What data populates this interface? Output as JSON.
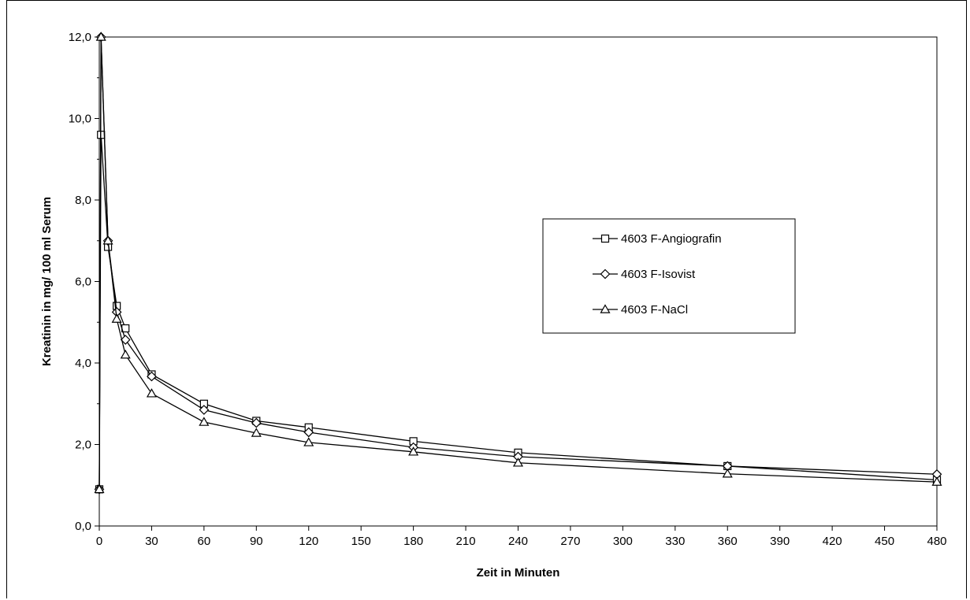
{
  "chart_data": {
    "type": "line",
    "xlabel": "Zeit in Minuten",
    "ylabel": "Kreatinin in mg/ 100 ml Serum",
    "xlim": [
      0,
      480
    ],
    "ylim": [
      0,
      12
    ],
    "x_ticks": [
      0,
      30,
      60,
      90,
      120,
      150,
      180,
      210,
      240,
      270,
      300,
      330,
      360,
      390,
      420,
      450,
      480
    ],
    "x_tick_labels": [
      "0",
      "30",
      "60",
      "90",
      "120",
      "150",
      "180",
      "210",
      "240",
      "270",
      "300",
      "330",
      "360",
      "390",
      "420",
      "450",
      "480"
    ],
    "y_ticks": [
      0,
      2,
      4,
      6,
      8,
      10,
      12
    ],
    "y_tick_labels": [
      "0,0",
      "2,0",
      "4,0",
      "6,0",
      "8,0",
      "10,0",
      "12,0"
    ],
    "grid": false,
    "legend_position": "right",
    "series": [
      {
        "name": "4603 F-Angiografin",
        "marker": "square",
        "x": [
          0,
          1,
          5,
          10,
          15,
          30,
          60,
          90,
          120,
          180,
          240,
          360,
          480
        ],
        "y": [
          0.9,
          9.6,
          6.85,
          5.4,
          4.85,
          3.72,
          3.0,
          2.58,
          2.42,
          2.08,
          1.8,
          1.47,
          1.13
        ]
      },
      {
        "name": "4603 F-Isovist",
        "marker": "diamond",
        "x": [
          0,
          1,
          5,
          10,
          15,
          30,
          60,
          90,
          120,
          180,
          240,
          360,
          480
        ],
        "y": [
          0.9,
          12.0,
          7.0,
          5.25,
          4.57,
          3.67,
          2.85,
          2.53,
          2.3,
          1.93,
          1.7,
          1.47,
          1.27
        ]
      },
      {
        "name": "4603 F-NaCl",
        "marker": "triangle",
        "x": [
          0,
          1,
          5,
          10,
          15,
          30,
          60,
          90,
          120,
          180,
          240,
          360,
          480
        ],
        "y": [
          0.9,
          12.0,
          7.0,
          5.08,
          4.2,
          3.25,
          2.55,
          2.28,
          2.05,
          1.82,
          1.55,
          1.28,
          1.08
        ]
      }
    ]
  }
}
